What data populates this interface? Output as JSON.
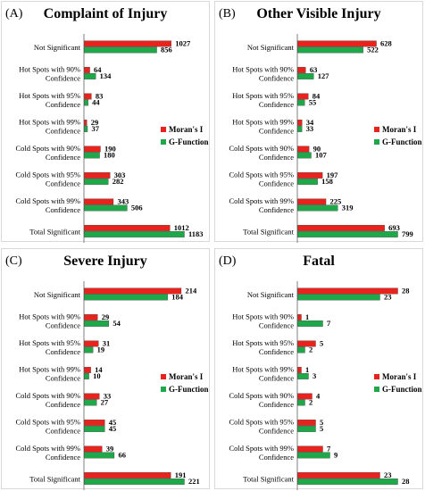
{
  "colors": {
    "moran": "#e8221c",
    "gfunction": "#1fa84a",
    "axis": "#7f7f7f",
    "panel_border": "#d9d9d9"
  },
  "legend": {
    "moran": "Moran's I",
    "gfunction": "G-Function"
  },
  "chart_data": [
    {
      "type": "bar",
      "orientation": "horizontal",
      "panel_label": "(A)",
      "title": "Complaint of Injury",
      "categories": [
        [
          "Not Significant"
        ],
        [
          "Hot Spots with 90%",
          "Confidence"
        ],
        [
          "Hot Spots with 95%",
          "Confidence"
        ],
        [
          "Hot Spots with 99%",
          "Confidence"
        ],
        [
          "Cold Spots with 90%",
          "Confidence"
        ],
        [
          "Cold Spots with 95%",
          "Confidence"
        ],
        [
          "Cold Spots with 99%",
          "Confidence"
        ],
        [
          "Total Significant"
        ]
      ],
      "series": [
        {
          "name": "Moran's I",
          "values": [
            1027,
            64,
            83,
            29,
            190,
            303,
            343,
            1012
          ]
        },
        {
          "name": "G-Function",
          "values": [
            856,
            134,
            44,
            37,
            180,
            282,
            506,
            1183
          ]
        }
      ],
      "xlim": [
        0,
        1183
      ],
      "legend_position": "right"
    },
    {
      "type": "bar",
      "orientation": "horizontal",
      "panel_label": "(B)",
      "title": "Other Visible Injury",
      "categories": [
        [
          "Not Significant"
        ],
        [
          "Hot Spots with 90%",
          "Confidence"
        ],
        [
          "Hot Spots with 95%",
          "Confidence"
        ],
        [
          "Hot Spots with 99%",
          "Confidence"
        ],
        [
          "Cold Spots with 90%",
          "Confidence"
        ],
        [
          "Cold Spots with 95%",
          "Confidence"
        ],
        [
          "Cold Spots with 99%",
          "Confidence"
        ],
        [
          "Total Significant"
        ]
      ],
      "series": [
        {
          "name": "Moran's I",
          "values": [
            628,
            63,
            84,
            34,
            90,
            197,
            225,
            693
          ]
        },
        {
          "name": "G-Function",
          "values": [
            522,
            127,
            55,
            33,
            107,
            158,
            319,
            799
          ]
        }
      ],
      "xlim": [
        0,
        799
      ],
      "legend_position": "right"
    },
    {
      "type": "bar",
      "orientation": "horizontal",
      "panel_label": "(C)",
      "title": "Severe Injury",
      "categories": [
        [
          "Not Significant"
        ],
        [
          "Hot Spots with 90%",
          "Confidence"
        ],
        [
          "Hot Spots with 95%",
          "Confidence"
        ],
        [
          "Hot Spots with 99%",
          "Confidence"
        ],
        [
          "Cold Spots with 90%",
          "Confidence"
        ],
        [
          "Cold Spots with 95%",
          "Confidence"
        ],
        [
          "Cold Spots with 99%",
          "Confidence"
        ],
        [
          "Total Significant"
        ]
      ],
      "series": [
        {
          "name": "Moran's I",
          "values": [
            214,
            29,
            31,
            14,
            33,
            45,
            39,
            191
          ]
        },
        {
          "name": "G-Function",
          "values": [
            184,
            54,
            19,
            10,
            27,
            45,
            66,
            221
          ]
        }
      ],
      "xlim": [
        0,
        221
      ],
      "legend_position": "right"
    },
    {
      "type": "bar",
      "orientation": "horizontal",
      "panel_label": "(D)",
      "title": "Fatal",
      "categories": [
        [
          "Not Significant"
        ],
        [
          "Hot Spots with 90%",
          "Confidence"
        ],
        [
          "Hot Spots with 95%",
          "Confidence"
        ],
        [
          "Hot Spots with 99%",
          "Confidence"
        ],
        [
          "Cold Spots with 90%",
          "Confidence"
        ],
        [
          "Cold Spots with 95%",
          "Confidence"
        ],
        [
          "Cold Spots with 99%",
          "Confidence"
        ],
        [
          "Total Significant"
        ]
      ],
      "series": [
        {
          "name": "Moran's I",
          "values": [
            28,
            1,
            5,
            1,
            4,
            5,
            7,
            23
          ]
        },
        {
          "name": "G-Function",
          "values": [
            23,
            7,
            2,
            3,
            2,
            5,
            9,
            28
          ]
        }
      ],
      "xlim": [
        0,
        28
      ],
      "legend_position": "right"
    }
  ]
}
